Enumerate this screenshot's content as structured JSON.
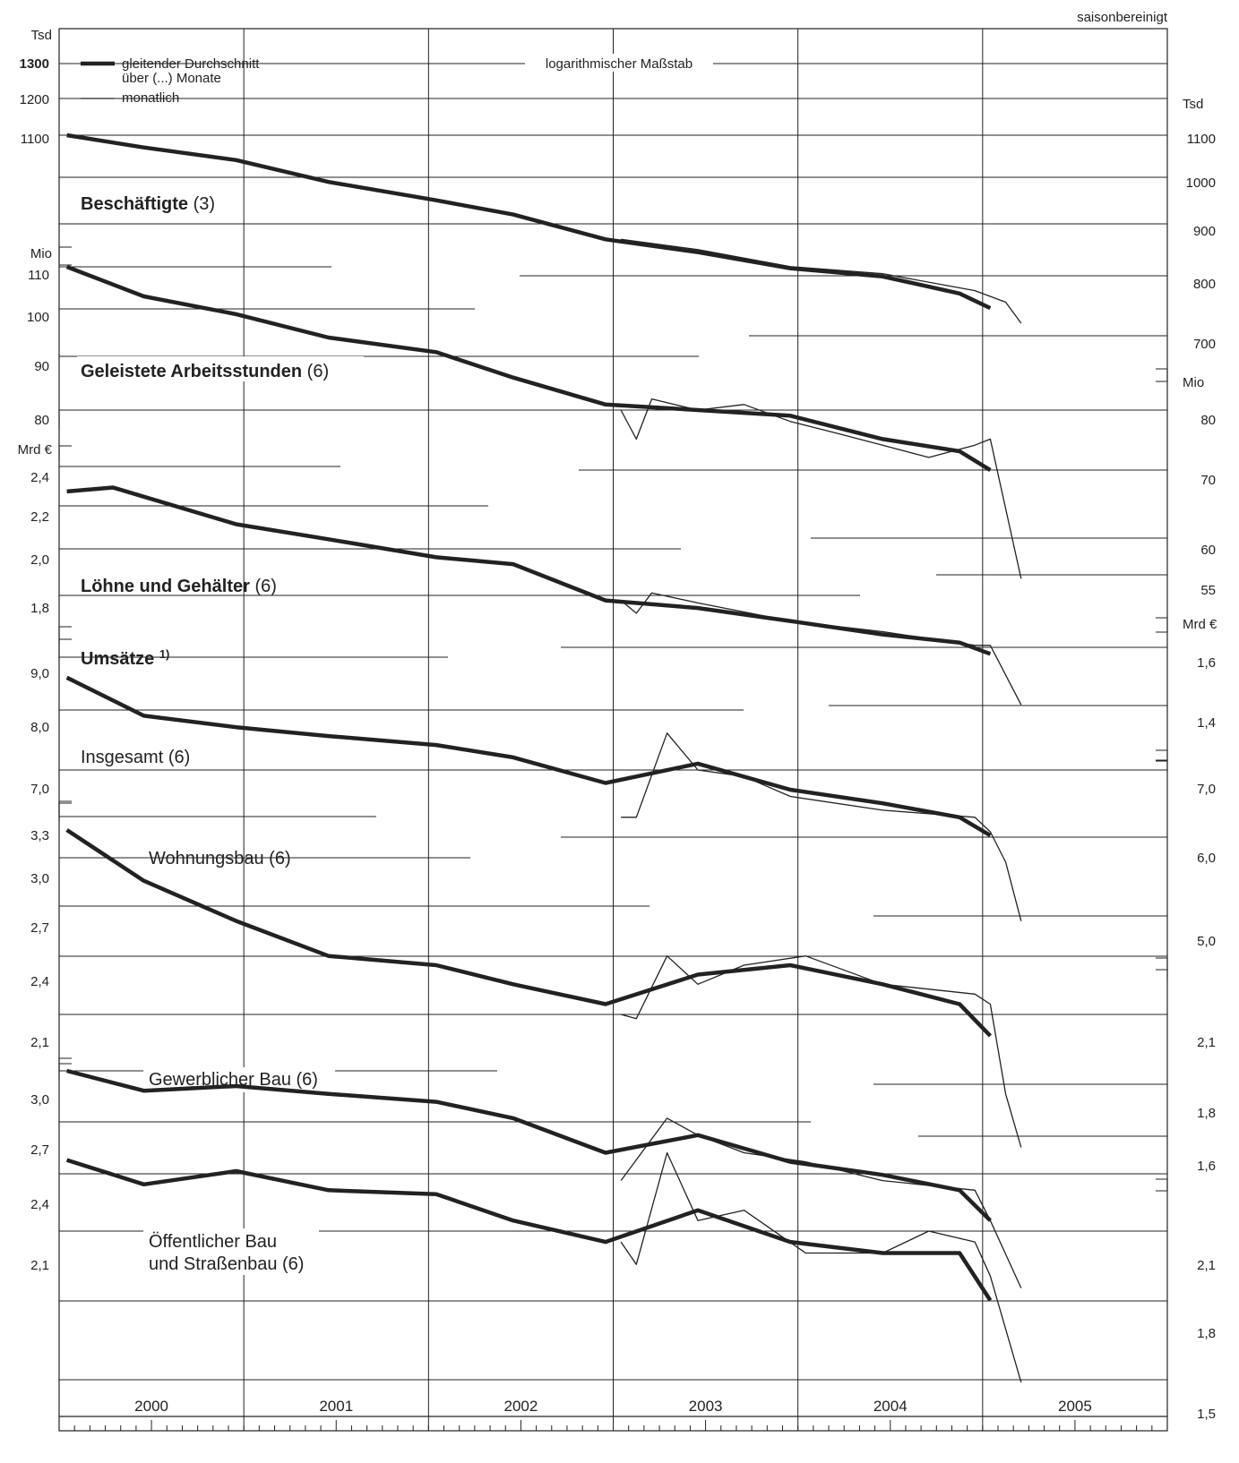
{
  "header": {
    "note": "saisonbereinigt"
  },
  "legend": {
    "smoothed_line1": "gleitender Durchschnitt",
    "smoothed_line2": "über (...) Monate",
    "monthly": "monatlich",
    "scale_note": "logarithmischer Maßstab"
  },
  "left_axis_units": {
    "tsd": "Tsd",
    "mio": "Mio",
    "mrd": "Mrd €"
  },
  "right_axis_units": {
    "tsd": "Tsd",
    "mio": "Mio",
    "mrd": "Mrd €"
  },
  "left_ticks": {
    "beschaeftigte": [
      "1300",
      "1200",
      "1100"
    ],
    "arbeitsstunden": [
      "110",
      "100",
      "90",
      "80"
    ],
    "loehne": [
      "2,4",
      "2,2",
      "2,0",
      "1,8"
    ],
    "umsaetze": [
      "9,0",
      "8,0",
      "7,0"
    ],
    "wohnungsbau": [
      "3,3",
      "3,0",
      "2,7",
      "2,4",
      "2,1"
    ],
    "gewerblich": [
      "3,0",
      "2,7",
      "2,4",
      "2,1"
    ]
  },
  "right_ticks": {
    "beschaeftigte": [
      "1100",
      "1000",
      "900",
      "800",
      "700"
    ],
    "arbeitsstunden": [
      "80",
      "70",
      "60",
      "55"
    ],
    "loehne": [
      "1,6",
      "1,4"
    ],
    "umsaetze": [
      "7,0",
      "6,0",
      "5,0"
    ],
    "wohnungsbau": [
      "2,1",
      "1,8",
      "1,6"
    ],
    "oeffentlich": [
      "2,1",
      "1,8",
      "1,5"
    ]
  },
  "series_labels": {
    "beschaeftigte": "Beschäftigte",
    "beschaeftigte_months": "(3)",
    "arbeitsstunden": "Geleistete Arbeitsstunden",
    "arbeitsstunden_months": "(6)",
    "loehne": "Löhne und Gehälter",
    "loehne_months": "(6)",
    "umsaetze": "Umsätze",
    "umsaetze_note": "1)",
    "insgesamt": "Insgesamt (6)",
    "wohnungsbau": "Wohnungsbau (6)",
    "gewerblich": "Gewerblicher Bau (6)",
    "oeffentlich_line1": "Öffentlicher Bau",
    "oeffentlich_line2": "und Straßenbau (6)"
  },
  "chart_data": {
    "type": "line",
    "title": "",
    "x_range": [
      "2000-01",
      "2005-12"
    ],
    "scale": "log",
    "years": [
      "2000",
      "2001",
      "2002",
      "2003",
      "2004",
      "2005"
    ],
    "panels": [
      {
        "name": "Beschäftigte (3)",
        "unit": "Tsd",
        "moving_average": {
          "x": [
            "2000-01",
            "2000-06",
            "2000-12",
            "2001-06",
            "2002-01",
            "2002-06",
            "2002-12",
            "2003-06",
            "2003-12",
            "2004-06",
            "2004-11",
            "2005-01"
          ],
          "y": [
            1100,
            1070,
            1040,
            990,
            950,
            920,
            870,
            845,
            815,
            800,
            770,
            745
          ]
        },
        "monthly": {
          "x": [
            "2003-01",
            "2003-06",
            "2003-12",
            "2004-06",
            "2004-12",
            "2005-02",
            "2005-03"
          ],
          "y": [
            870,
            850,
            818,
            805,
            775,
            755,
            720
          ]
        }
      },
      {
        "name": "Geleistete Arbeitsstunden (6)",
        "unit": "Mio",
        "moving_average": {
          "x": [
            "2000-01",
            "2000-06",
            "2000-12",
            "2001-06",
            "2002-01",
            "2002-06",
            "2002-12",
            "2003-06",
            "2003-12",
            "2004-06",
            "2004-11",
            "2005-01"
          ],
          "y": [
            110,
            103,
            99,
            94,
            91,
            86,
            81,
            80,
            79,
            75,
            73,
            70
          ]
        },
        "monthly": {
          "x": [
            "2003-01",
            "2003-02",
            "2003-03",
            "2003-06",
            "2003-09",
            "2003-12",
            "2004-03",
            "2004-06",
            "2004-09",
            "2004-12",
            "2005-01",
            "2005-03"
          ],
          "y": [
            80,
            75,
            82,
            80,
            81,
            78,
            76,
            74,
            72,
            74,
            75,
            55
          ]
        }
      },
      {
        "name": "Löhne und Gehälter (6)",
        "unit": "Mrd €",
        "moving_average": {
          "x": [
            "2000-01",
            "2000-04",
            "2000-12",
            "2001-06",
            "2002-01",
            "2002-06",
            "2002-12",
            "2003-06",
            "2003-12",
            "2004-06",
            "2004-11",
            "2005-01"
          ],
          "y": [
            2.27,
            2.29,
            2.11,
            2.04,
            1.96,
            1.93,
            1.78,
            1.75,
            1.7,
            1.65,
            1.62,
            1.58
          ]
        },
        "monthly": {
          "x": [
            "2003-01",
            "2003-02",
            "2003-03",
            "2003-06",
            "2003-12",
            "2004-06",
            "2004-12",
            "2005-01",
            "2005-03"
          ],
          "y": [
            1.78,
            1.73,
            1.81,
            1.77,
            1.7,
            1.66,
            1.61,
            1.61,
            1.41
          ]
        }
      },
      {
        "name": "Umsätze Insgesamt (6)",
        "unit": "Mrd €",
        "moving_average": {
          "x": [
            "2000-01",
            "2000-06",
            "2000-12",
            "2001-06",
            "2002-01",
            "2002-06",
            "2002-12",
            "2003-06",
            "2003-12",
            "2004-06",
            "2004-11",
            "2005-01"
          ],
          "y": [
            8.6,
            7.9,
            7.7,
            7.55,
            7.4,
            7.2,
            6.8,
            7.1,
            6.7,
            6.5,
            6.3,
            6.05
          ]
        },
        "monthly": {
          "x": [
            "2003-01",
            "2003-02",
            "2003-04",
            "2003-06",
            "2003-09",
            "2003-12",
            "2004-06",
            "2004-12",
            "2005-01",
            "2005-02",
            "2005-03"
          ],
          "y": [
            6.3,
            6.3,
            7.6,
            7.0,
            6.9,
            6.6,
            6.4,
            6.3,
            6.1,
            5.7,
            5.0
          ]
        }
      },
      {
        "name": "Wohnungsbau (6)",
        "unit": "Mrd €",
        "moving_average": {
          "x": [
            "2000-01",
            "2000-06",
            "2000-12",
            "2001-06",
            "2002-01",
            "2002-06",
            "2002-12",
            "2003-06",
            "2003-12",
            "2004-06",
            "2004-11",
            "2005-01"
          ],
          "y": [
            3.2,
            2.85,
            2.6,
            2.4,
            2.35,
            2.25,
            2.15,
            2.3,
            2.35,
            2.25,
            2.15,
            2.0
          ]
        },
        "monthly": {
          "x": [
            "2003-01",
            "2003-02",
            "2003-04",
            "2003-06",
            "2003-09",
            "2004-01",
            "2004-06",
            "2004-12",
            "2005-01",
            "2005-02",
            "2005-03"
          ],
          "y": [
            2.1,
            2.08,
            2.4,
            2.25,
            2.35,
            2.4,
            2.25,
            2.2,
            2.15,
            1.75,
            1.55
          ]
        }
      },
      {
        "name": "Gewerblicher Bau (6)",
        "unit": "Mrd €",
        "moving_average": {
          "x": [
            "2000-01",
            "2000-06",
            "2000-12",
            "2001-06",
            "2002-01",
            "2002-06",
            "2002-12",
            "2003-06",
            "2003-12",
            "2004-06",
            "2004-11",
            "2005-01"
          ],
          "y": [
            3.0,
            2.87,
            2.9,
            2.85,
            2.8,
            2.7,
            2.5,
            2.6,
            2.45,
            2.38,
            2.3,
            2.15
          ]
        },
        "monthly": {
          "x": [
            "2003-01",
            "2003-04",
            "2003-06",
            "2003-09",
            "2004-01",
            "2004-06",
            "2004-12",
            "2005-01",
            "2005-03"
          ],
          "y": [
            2.35,
            2.7,
            2.6,
            2.5,
            2.45,
            2.35,
            2.3,
            2.15,
            1.85
          ]
        }
      },
      {
        "name": "Öffentlicher Bau und Straßenbau (6)",
        "unit": "Mrd €",
        "moving_average": {
          "x": [
            "2000-01",
            "2000-06",
            "2000-12",
            "2001-06",
            "2002-01",
            "2002-06",
            "2002-12",
            "2003-06",
            "2003-12",
            "2004-06",
            "2004-11",
            "2005-01"
          ],
          "y": [
            2.46,
            2.33,
            2.4,
            2.3,
            2.28,
            2.15,
            2.05,
            2.2,
            2.05,
            2.0,
            2.0,
            1.8
          ]
        },
        "monthly": {
          "x": [
            "2003-01",
            "2003-02",
            "2003-04",
            "2003-06",
            "2003-09",
            "2004-01",
            "2004-06",
            "2004-09",
            "2004-12",
            "2005-01",
            "2005-03"
          ],
          "y": [
            2.05,
            1.95,
            2.5,
            2.15,
            2.2,
            2.0,
            2.0,
            2.1,
            2.05,
            1.9,
            1.5
          ]
        }
      }
    ]
  }
}
